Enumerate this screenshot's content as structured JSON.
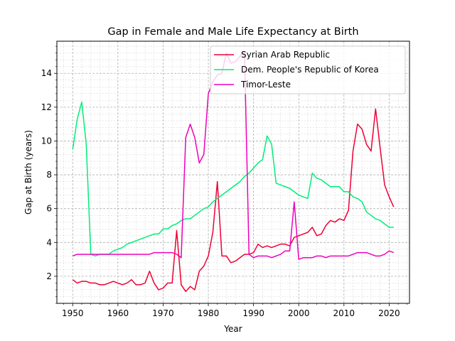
{
  "chart_data": {
    "type": "line",
    "title": "Gap in Female and Male Life Expectancy at Birth",
    "xlabel": "Year",
    "ylabel": "Gap at Birth (years)",
    "xlim": [
      1946.5,
      2024.5
    ],
    "ylim": [
      0.4,
      15.9
    ],
    "x_ticks": [
      1950,
      1960,
      1970,
      1980,
      1990,
      2000,
      2010,
      2020
    ],
    "y_ticks": [
      2,
      4,
      6,
      8,
      10,
      12,
      14
    ],
    "grid": "major and minor, dashed",
    "legend_position": "top-right",
    "series": [
      {
        "name": "Syrian Arab Republic",
        "color": "#ee0033",
        "x": [
          1950,
          1951,
          1952,
          1953,
          1954,
          1955,
          1956,
          1957,
          1958,
          1959,
          1960,
          1961,
          1962,
          1963,
          1964,
          1965,
          1966,
          1967,
          1968,
          1969,
          1970,
          1971,
          1972,
          1973,
          1974,
          1975,
          1976,
          1977,
          1978,
          1979,
          1980,
          1981,
          1982,
          1983,
          1984,
          1985,
          1986,
          1987,
          1988,
          1989,
          1990,
          1991,
          1992,
          1993,
          1994,
          1995,
          1996,
          1997,
          1998,
          1999,
          2000,
          2001,
          2002,
          2003,
          2004,
          2005,
          2006,
          2007,
          2008,
          2009,
          2010,
          2011,
          2012,
          2013,
          2014,
          2015,
          2016,
          2017,
          2018,
          2019,
          2020,
          2021
        ],
        "values": [
          1.8,
          1.6,
          1.7,
          1.7,
          1.6,
          1.6,
          1.5,
          1.5,
          1.6,
          1.7,
          1.6,
          1.5,
          1.6,
          1.8,
          1.5,
          1.5,
          1.6,
          2.3,
          1.6,
          1.2,
          1.3,
          1.6,
          1.6,
          4.7,
          1.5,
          1.1,
          1.4,
          1.2,
          2.3,
          2.6,
          3.2,
          4.6,
          7.6,
          3.2,
          3.2,
          2.8,
          2.9,
          3.1,
          3.3,
          3.3,
          3.4,
          3.9,
          3.7,
          3.8,
          3.7,
          3.8,
          3.9,
          3.9,
          3.8,
          4.3,
          4.4,
          4.5,
          4.6,
          4.9,
          4.4,
          4.5,
          5.0,
          5.3,
          5.2,
          5.4,
          5.3,
          5.9,
          9.4,
          11.0,
          10.7,
          9.8,
          9.4,
          11.9,
          9.6,
          7.4,
          6.7,
          6.1
        ]
      },
      {
        "name": "Dem. People's Republic of Korea",
        "color": "#00ee77",
        "x": [
          1950,
          1951,
          1952,
          1953,
          1954,
          1955,
          1956,
          1957,
          1958,
          1959,
          1960,
          1961,
          1962,
          1963,
          1964,
          1965,
          1966,
          1967,
          1968,
          1969,
          1970,
          1971,
          1972,
          1973,
          1974,
          1975,
          1976,
          1977,
          1978,
          1979,
          1980,
          1981,
          1982,
          1983,
          1984,
          1985,
          1986,
          1987,
          1988,
          1989,
          1990,
          1991,
          1992,
          1993,
          1994,
          1995,
          1996,
          1997,
          1998,
          1999,
          2000,
          2001,
          2002,
          2003,
          2004,
          2005,
          2006,
          2007,
          2008,
          2009,
          2010,
          2011,
          2012,
          2013,
          2014,
          2015,
          2016,
          2017,
          2018,
          2019,
          2020,
          2021
        ],
        "values": [
          9.5,
          11.3,
          12.3,
          9.8,
          3.3,
          3.2,
          3.3,
          3.3,
          3.3,
          3.5,
          3.6,
          3.7,
          3.9,
          4.0,
          4.1,
          4.2,
          4.3,
          4.4,
          4.5,
          4.5,
          4.8,
          4.8,
          5.0,
          5.1,
          5.3,
          5.4,
          5.4,
          5.6,
          5.8,
          6.0,
          6.1,
          6.4,
          6.6,
          6.8,
          7.0,
          7.2,
          7.4,
          7.6,
          7.9,
          8.1,
          8.4,
          8.7,
          8.9,
          10.3,
          9.8,
          7.5,
          7.4,
          7.3,
          7.2,
          7.0,
          6.8,
          6.7,
          6.6,
          8.1,
          7.8,
          7.7,
          7.5,
          7.3,
          7.3,
          7.3,
          7.0,
          7.0,
          6.7,
          6.6,
          6.4,
          5.8,
          5.6,
          5.4,
          5.3,
          5.1,
          4.9,
          4.9
        ]
      },
      {
        "name": "Timor-Leste",
        "color": "#ee00bb",
        "x": [
          1950,
          1951,
          1952,
          1953,
          1954,
          1955,
          1956,
          1957,
          1958,
          1959,
          1960,
          1961,
          1962,
          1963,
          1964,
          1965,
          1966,
          1967,
          1968,
          1969,
          1970,
          1971,
          1972,
          1973,
          1974,
          1975,
          1976,
          1977,
          1978,
          1979,
          1980,
          1981,
          1982,
          1983,
          1984,
          1985,
          1986,
          1987,
          1988,
          1989,
          1990,
          1991,
          1992,
          1993,
          1994,
          1995,
          1996,
          1997,
          1998,
          1999,
          2000,
          2001,
          2002,
          2003,
          2004,
          2005,
          2006,
          2007,
          2008,
          2009,
          2010,
          2011,
          2012,
          2013,
          2014,
          2015,
          2016,
          2017,
          2018,
          2019,
          2020,
          2021
        ],
        "values": [
          3.2,
          3.3,
          3.3,
          3.3,
          3.3,
          3.3,
          3.3,
          3.3,
          3.3,
          3.3,
          3.3,
          3.3,
          3.3,
          3.3,
          3.3,
          3.3,
          3.3,
          3.3,
          3.4,
          3.4,
          3.4,
          3.4,
          3.4,
          3.3,
          3.1,
          10.2,
          11.0,
          10.2,
          8.7,
          9.2,
          12.8,
          13.5,
          13.9,
          14.0,
          15.2,
          14.6,
          14.7,
          15.0,
          15.3,
          3.3,
          3.1,
          3.2,
          3.2,
          3.2,
          3.1,
          3.2,
          3.3,
          3.5,
          3.5,
          6.4,
          3.0,
          3.1,
          3.1,
          3.1,
          3.2,
          3.2,
          3.1,
          3.2,
          3.2,
          3.2,
          3.2,
          3.2,
          3.3,
          3.4,
          3.4,
          3.4,
          3.3,
          3.2,
          3.2,
          3.3,
          3.5,
          3.4
        ]
      }
    ]
  }
}
